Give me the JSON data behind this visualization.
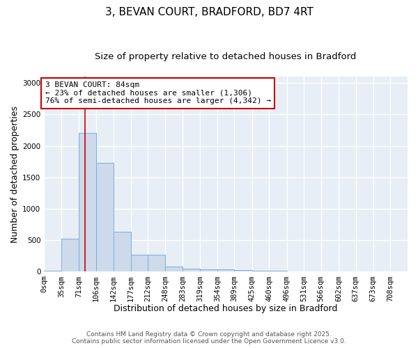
{
  "title_line1": "3, BEVAN COURT, BRADFORD, BD7 4RT",
  "title_line2": "Size of property relative to detached houses in Bradford",
  "xlabel": "Distribution of detached houses by size in Bradford",
  "ylabel": "Number of detached properties",
  "bin_labels": [
    "0sqm",
    "35sqm",
    "71sqm",
    "106sqm",
    "142sqm",
    "177sqm",
    "212sqm",
    "248sqm",
    "283sqm",
    "319sqm",
    "354sqm",
    "389sqm",
    "425sqm",
    "460sqm",
    "496sqm",
    "531sqm",
    "566sqm",
    "602sqm",
    "637sqm",
    "673sqm",
    "708sqm"
  ],
  "bin_edges": [
    0,
    35,
    71,
    106,
    142,
    177,
    212,
    248,
    283,
    319,
    354,
    389,
    425,
    460,
    496,
    531,
    566,
    602,
    637,
    673,
    708
  ],
  "bar_values": [
    20,
    520,
    2200,
    1730,
    630,
    270,
    270,
    85,
    50,
    40,
    35,
    25,
    15,
    20,
    5,
    5,
    3,
    2,
    1,
    0,
    0
  ],
  "bar_color": "#ccdaeb",
  "bar_edge_color": "#7aafd4",
  "red_line_x": 84,
  "annotation_line1": "3 BEVAN COURT: 84sqm",
  "annotation_line2": "← 23% of detached houses are smaller (1,306)",
  "annotation_line3": "76% of semi-detached houses are larger (4,342) →",
  "annotation_box_color": "#cc0000",
  "ylim": [
    0,
    3100
  ],
  "bg_color": "#e8eef5",
  "grid_color": "#ffffff",
  "footer_line1": "Contains HM Land Registry data © Crown copyright and database right 2025.",
  "footer_line2": "Contains public sector information licensed under the Open Government Licence v3.0.",
  "title_fontsize": 11,
  "subtitle_fontsize": 9.5,
  "axis_label_fontsize": 9,
  "tick_fontsize": 7.5,
  "annotation_fontsize": 8,
  "footer_fontsize": 6.5
}
